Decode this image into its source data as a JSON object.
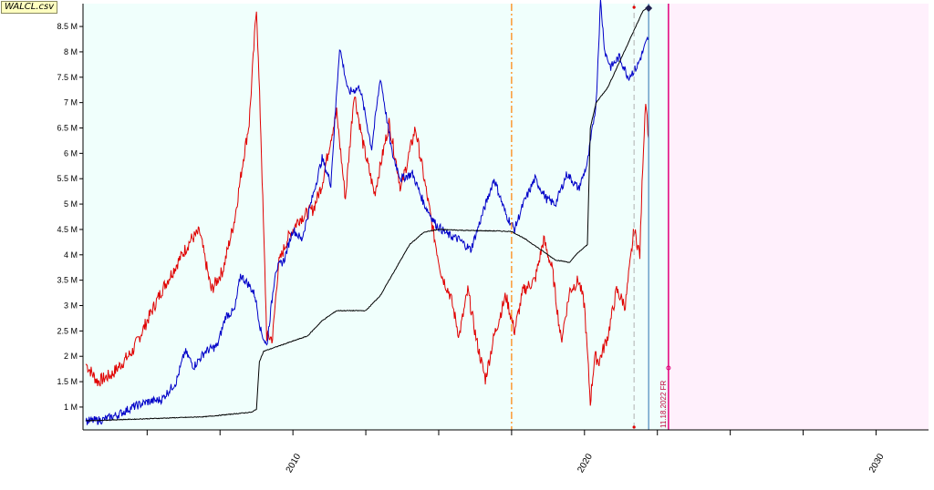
{
  "file_label": "WALCL.csv",
  "chart_data": {
    "type": "line",
    "title": "",
    "xlabel": "",
    "ylabel": "",
    "xlim": [
      2002.8,
      2031.8
    ],
    "ylim": [
      550000,
      8950000
    ],
    "y_ticks": [
      1000000,
      1500000,
      2000000,
      2500000,
      3000000,
      3500000,
      4000000,
      4500000,
      5000000,
      5500000,
      6000000,
      6500000,
      7000000,
      7500000,
      8000000,
      8500000
    ],
    "y_tick_labels": [
      "1 M",
      "1.5 M",
      "2 M",
      "2.5 M",
      "3 M",
      "3.5 M",
      "4 M",
      "4.5 M",
      "5 M",
      "5.5 M",
      "6 M",
      "6.5 M",
      "7 M",
      "7.5 M",
      "8 M",
      "8.5 M"
    ],
    "x_ticks": [
      2010,
      2020,
      2030
    ],
    "x_tick_labels": [
      "2010",
      "2020",
      "2030"
    ],
    "background": {
      "history": "#f0fffc",
      "future": "#fff0fc"
    },
    "grid": false,
    "colors": {
      "series_1": "#e00000",
      "series_2": "#0000c8",
      "series_3": "#000000",
      "dashed_marker": "#ff8000",
      "last_date": "#e0007a"
    },
    "markers": {
      "dashed_vertical": 2017.5,
      "gray_dashed_vertical": 2021.7,
      "last_data": 2022.2,
      "last_date": 2022.88
    },
    "last_date_label": "11.18.2022 FR",
    "series": [
      {
        "color": "#e00000",
        "points": [
          [
            2002.9,
            1850000
          ],
          [
            2003.3,
            1500000
          ],
          [
            2003.8,
            1650000
          ],
          [
            2004.5,
            2100000
          ],
          [
            2005.0,
            2700000
          ],
          [
            2005.5,
            3300000
          ],
          [
            2006.0,
            3800000
          ],
          [
            2006.5,
            4300000
          ],
          [
            2006.8,
            4450000
          ],
          [
            2007.2,
            3300000
          ],
          [
            2007.6,
            3700000
          ],
          [
            2008.0,
            4700000
          ],
          [
            2008.3,
            5900000
          ],
          [
            2008.5,
            6600000
          ],
          [
            2008.75,
            8900000
          ],
          [
            2008.9,
            6400000
          ],
          [
            2009.1,
            2400000
          ],
          [
            2009.3,
            2350000
          ],
          [
            2009.5,
            3800000
          ],
          [
            2009.8,
            4300000
          ],
          [
            2010.2,
            4700000
          ],
          [
            2010.7,
            4900000
          ],
          [
            2011.0,
            5400000
          ],
          [
            2011.3,
            6300000
          ],
          [
            2011.5,
            6800000
          ],
          [
            2011.8,
            5100000
          ],
          [
            2012.1,
            7200000
          ],
          [
            2012.4,
            6200000
          ],
          [
            2012.8,
            5200000
          ],
          [
            2013.3,
            6600000
          ],
          [
            2013.7,
            5300000
          ],
          [
            2014.2,
            6500000
          ],
          [
            2014.5,
            5500000
          ],
          [
            2014.8,
            4500000
          ],
          [
            2015.1,
            3600000
          ],
          [
            2015.4,
            3200000
          ],
          [
            2015.7,
            2400000
          ],
          [
            2016.0,
            3300000
          ],
          [
            2016.3,
            2300000
          ],
          [
            2016.6,
            1550000
          ],
          [
            2016.9,
            2400000
          ],
          [
            2017.3,
            3200000
          ],
          [
            2017.6,
            2500000
          ],
          [
            2017.9,
            3300000
          ],
          [
            2018.3,
            3500000
          ],
          [
            2018.6,
            4300000
          ],
          [
            2018.9,
            3700000
          ],
          [
            2019.2,
            2300000
          ],
          [
            2019.5,
            3300000
          ],
          [
            2019.8,
            3500000
          ],
          [
            2020.0,
            3000000
          ],
          [
            2020.2,
            1100000
          ],
          [
            2020.35,
            2000000
          ],
          [
            2020.5,
            1900000
          ],
          [
            2020.8,
            2400000
          ],
          [
            2021.1,
            3300000
          ],
          [
            2021.4,
            3000000
          ],
          [
            2021.7,
            4500000
          ],
          [
            2021.9,
            4000000
          ],
          [
            2022.0,
            5800000
          ],
          [
            2022.1,
            7100000
          ],
          [
            2022.2,
            6300000
          ]
        ]
      },
      {
        "color": "#0000c8",
        "points": [
          [
            2002.9,
            720000
          ],
          [
            2003.5,
            750000
          ],
          [
            2004.0,
            850000
          ],
          [
            2004.5,
            1000000
          ],
          [
            2005.0,
            1100000
          ],
          [
            2005.5,
            1150000
          ],
          [
            2006.0,
            1500000
          ],
          [
            2006.3,
            2100000
          ],
          [
            2006.6,
            1800000
          ],
          [
            2007.0,
            2100000
          ],
          [
            2007.4,
            2200000
          ],
          [
            2007.7,
            2800000
          ],
          [
            2008.0,
            2900000
          ],
          [
            2008.2,
            3600000
          ],
          [
            2008.5,
            3400000
          ],
          [
            2008.7,
            3200000
          ],
          [
            2008.9,
            2500000
          ],
          [
            2009.1,
            2200000
          ],
          [
            2009.4,
            3700000
          ],
          [
            2009.7,
            3900000
          ],
          [
            2010.0,
            4500000
          ],
          [
            2010.3,
            4300000
          ],
          [
            2010.7,
            5200000
          ],
          [
            2011.0,
            5900000
          ],
          [
            2011.3,
            5400000
          ],
          [
            2011.6,
            8100000
          ],
          [
            2011.9,
            7200000
          ],
          [
            2012.3,
            7300000
          ],
          [
            2012.7,
            6100000
          ],
          [
            2013.0,
            7500000
          ],
          [
            2013.4,
            6000000
          ],
          [
            2013.7,
            5500000
          ],
          [
            2014.1,
            5600000
          ],
          [
            2014.5,
            5000000
          ],
          [
            2014.9,
            4600000
          ],
          [
            2015.3,
            4400000
          ],
          [
            2015.7,
            4300000
          ],
          [
            2016.1,
            4100000
          ],
          [
            2016.5,
            4800000
          ],
          [
            2016.9,
            5500000
          ],
          [
            2017.3,
            4800000
          ],
          [
            2017.6,
            4500000
          ],
          [
            2017.9,
            5000000
          ],
          [
            2018.3,
            5500000
          ],
          [
            2018.7,
            5100000
          ],
          [
            2019.0,
            5000000
          ],
          [
            2019.4,
            5600000
          ],
          [
            2019.8,
            5300000
          ],
          [
            2020.1,
            5800000
          ],
          [
            2020.4,
            7000000
          ],
          [
            2020.55,
            9000000
          ],
          [
            2020.7,
            8000000
          ],
          [
            2020.9,
            7700000
          ],
          [
            2021.2,
            7900000
          ],
          [
            2021.5,
            7500000
          ],
          [
            2021.8,
            7700000
          ],
          [
            2022.0,
            8000000
          ],
          [
            2022.2,
            8300000
          ]
        ]
      },
      {
        "color": "#000000",
        "points": [
          [
            2002.9,
            730000
          ],
          [
            2005.0,
            770000
          ],
          [
            2007.0,
            810000
          ],
          [
            2008.6,
            900000
          ],
          [
            2008.75,
            960000
          ],
          [
            2008.85,
            1900000
          ],
          [
            2009.0,
            2100000
          ],
          [
            2009.5,
            2200000
          ],
          [
            2010.0,
            2300000
          ],
          [
            2010.5,
            2400000
          ],
          [
            2011.0,
            2700000
          ],
          [
            2011.5,
            2900000
          ],
          [
            2012.0,
            2900000
          ],
          [
            2012.5,
            2900000
          ],
          [
            2013.0,
            3200000
          ],
          [
            2013.5,
            3700000
          ],
          [
            2014.0,
            4200000
          ],
          [
            2014.5,
            4450000
          ],
          [
            2015.0,
            4500000
          ],
          [
            2016.0,
            4480000
          ],
          [
            2017.0,
            4470000
          ],
          [
            2017.5,
            4460000
          ],
          [
            2018.0,
            4300000
          ],
          [
            2018.5,
            4100000
          ],
          [
            2019.0,
            3900000
          ],
          [
            2019.5,
            3850000
          ],
          [
            2019.7,
            4000000
          ],
          [
            2020.1,
            4200000
          ],
          [
            2020.2,
            6500000
          ],
          [
            2020.4,
            7000000
          ],
          [
            2020.8,
            7300000
          ],
          [
            2021.2,
            7800000
          ],
          [
            2021.6,
            8300000
          ],
          [
            2022.0,
            8800000
          ],
          [
            2022.2,
            8900000
          ]
        ]
      }
    ]
  }
}
